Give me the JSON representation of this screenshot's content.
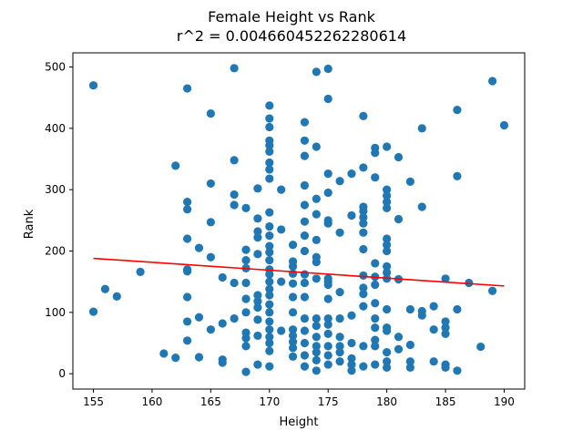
{
  "chart_data": {
    "type": "scatter",
    "title": "Female Height vs Rank",
    "subtitle": "r^2 = 0.004660452262280614",
    "xlabel": "Height",
    "ylabel": "Rank",
    "xlim": [
      153.25,
      191.75
    ],
    "ylim": [
      -25,
      523
    ],
    "xticks": [
      155,
      160,
      165,
      170,
      175,
      180,
      185,
      190
    ],
    "yticks": [
      0,
      100,
      200,
      300,
      400,
      500
    ],
    "grid": false,
    "legend": "none",
    "colors": {
      "points": "#1f77b4",
      "fit_line": "#ff0000"
    },
    "fit_line": {
      "x": [
        155,
        190
      ],
      "y": [
        188,
        143
      ]
    },
    "points": [
      [
        155,
        470
      ],
      [
        155,
        101
      ],
      [
        156,
        138
      ],
      [
        157,
        126
      ],
      [
        159,
        166
      ],
      [
        161,
        33
      ],
      [
        162,
        339
      ],
      [
        162,
        26
      ],
      [
        163,
        465
      ],
      [
        163,
        280
      ],
      [
        163,
        268
      ],
      [
        163,
        220
      ],
      [
        163,
        170
      ],
      [
        163,
        167
      ],
      [
        163,
        125
      ],
      [
        163,
        85
      ],
      [
        163,
        54
      ],
      [
        164,
        205
      ],
      [
        164,
        92
      ],
      [
        164,
        27
      ],
      [
        165,
        424
      ],
      [
        165,
        310
      ],
      [
        165,
        247
      ],
      [
        165,
        190
      ],
      [
        165,
        72
      ],
      [
        166,
        157
      ],
      [
        166,
        82
      ],
      [
        166,
        23
      ],
      [
        166,
        18
      ],
      [
        167,
        498
      ],
      [
        167,
        348
      ],
      [
        167,
        292
      ],
      [
        167,
        275
      ],
      [
        167,
        148
      ],
      [
        167,
        90
      ],
      [
        168,
        270
      ],
      [
        168,
        202
      ],
      [
        168,
        185
      ],
      [
        168,
        172
      ],
      [
        168,
        148
      ],
      [
        168,
        122
      ],
      [
        168,
        100
      ],
      [
        168,
        67
      ],
      [
        168,
        58
      ],
      [
        168,
        45
      ],
      [
        168,
        3
      ],
      [
        169,
        302
      ],
      [
        169,
        253
      ],
      [
        169,
        232
      ],
      [
        169,
        222
      ],
      [
        169,
        195
      ],
      [
        169,
        128
      ],
      [
        169,
        118
      ],
      [
        169,
        108
      ],
      [
        169,
        88
      ],
      [
        169,
        62
      ],
      [
        169,
        15
      ],
      [
        170,
        437
      ],
      [
        170,
        416
      ],
      [
        170,
        402
      ],
      [
        170,
        380
      ],
      [
        170,
        372
      ],
      [
        170,
        362
      ],
      [
        170,
        344
      ],
      [
        170,
        333
      ],
      [
        170,
        318
      ],
      [
        170,
        263
      ],
      [
        170,
        240
      ],
      [
        170,
        225
      ],
      [
        170,
        208
      ],
      [
        170,
        198
      ],
      [
        170,
        185
      ],
      [
        170,
        170
      ],
      [
        170,
        162
      ],
      [
        170,
        150
      ],
      [
        170,
        138
      ],
      [
        170,
        128
      ],
      [
        170,
        113
      ],
      [
        170,
        100
      ],
      [
        170,
        85
      ],
      [
        170,
        72
      ],
      [
        170,
        60
      ],
      [
        170,
        50
      ],
      [
        170,
        37
      ],
      [
        170,
        12
      ],
      [
        171,
        300
      ],
      [
        171,
        235
      ],
      [
        171,
        150
      ],
      [
        171,
        70
      ],
      [
        172,
        210
      ],
      [
        172,
        183
      ],
      [
        172,
        175
      ],
      [
        172,
        163
      ],
      [
        172,
        147
      ],
      [
        172,
        125
      ],
      [
        172,
        100
      ],
      [
        172,
        72
      ],
      [
        172,
        62
      ],
      [
        172,
        52
      ],
      [
        172,
        42
      ],
      [
        172,
        28
      ],
      [
        173,
        410
      ],
      [
        173,
        380
      ],
      [
        173,
        355
      ],
      [
        173,
        307
      ],
      [
        173,
        275
      ],
      [
        173,
        248
      ],
      [
        173,
        225
      ],
      [
        173,
        200
      ],
      [
        173,
        162
      ],
      [
        173,
        148
      ],
      [
        173,
        125
      ],
      [
        173,
        90
      ],
      [
        173,
        70
      ],
      [
        173,
        50
      ],
      [
        173,
        30
      ],
      [
        173,
        12
      ],
      [
        174,
        492
      ],
      [
        174,
        370
      ],
      [
        174,
        285
      ],
      [
        174,
        260
      ],
      [
        174,
        218
      ],
      [
        174,
        190
      ],
      [
        174,
        182
      ],
      [
        174,
        155
      ],
      [
        174,
        90
      ],
      [
        174,
        78
      ],
      [
        174,
        60
      ],
      [
        174,
        45
      ],
      [
        174,
        35
      ],
      [
        174,
        22
      ],
      [
        174,
        5
      ],
      [
        175,
        497
      ],
      [
        175,
        448
      ],
      [
        175,
        326
      ],
      [
        175,
        295
      ],
      [
        175,
        250
      ],
      [
        175,
        245
      ],
      [
        175,
        155
      ],
      [
        175,
        150
      ],
      [
        175,
        145
      ],
      [
        175,
        122
      ],
      [
        175,
        90
      ],
      [
        175,
        80
      ],
      [
        175,
        65
      ],
      [
        175,
        45
      ],
      [
        175,
        30
      ],
      [
        175,
        15
      ],
      [
        176,
        314
      ],
      [
        176,
        230
      ],
      [
        176,
        133
      ],
      [
        176,
        90
      ],
      [
        176,
        60
      ],
      [
        176,
        45
      ],
      [
        176,
        35
      ],
      [
        176,
        20
      ],
      [
        177,
        326
      ],
      [
        177,
        258
      ],
      [
        177,
        95
      ],
      [
        177,
        50
      ],
      [
        177,
        25
      ],
      [
        177,
        15
      ],
      [
        177,
        5
      ],
      [
        178,
        420
      ],
      [
        178,
        336
      ],
      [
        178,
        272
      ],
      [
        178,
        265
      ],
      [
        178,
        255
      ],
      [
        178,
        245
      ],
      [
        178,
        230
      ],
      [
        178,
        203
      ],
      [
        178,
        160
      ],
      [
        178,
        140
      ],
      [
        178,
        130
      ],
      [
        178,
        110
      ],
      [
        178,
        45
      ],
      [
        178,
        12
      ],
      [
        179,
        368
      ],
      [
        179,
        360
      ],
      [
        179,
        320
      ],
      [
        179,
        180
      ],
      [
        179,
        158
      ],
      [
        179,
        145
      ],
      [
        179,
        115
      ],
      [
        179,
        90
      ],
      [
        179,
        75
      ],
      [
        179,
        55
      ],
      [
        179,
        45
      ],
      [
        179,
        15
      ],
      [
        180,
        370
      ],
      [
        180,
        300
      ],
      [
        180,
        290
      ],
      [
        180,
        280
      ],
      [
        180,
        270
      ],
      [
        180,
        220
      ],
      [
        180,
        210
      ],
      [
        180,
        200
      ],
      [
        180,
        175
      ],
      [
        180,
        165
      ],
      [
        180,
        155
      ],
      [
        180,
        105
      ],
      [
        180,
        75
      ],
      [
        180,
        70
      ],
      [
        180,
        35
      ],
      [
        180,
        20
      ],
      [
        180,
        10
      ],
      [
        181,
        353
      ],
      [
        181,
        252
      ],
      [
        181,
        154
      ],
      [
        181,
        60
      ],
      [
        181,
        40
      ],
      [
        182,
        313
      ],
      [
        182,
        105
      ],
      [
        182,
        47
      ],
      [
        182,
        20
      ],
      [
        182,
        10
      ],
      [
        183,
        400
      ],
      [
        183,
        272
      ],
      [
        183,
        102
      ],
      [
        183,
        95
      ],
      [
        184,
        110
      ],
      [
        184,
        72
      ],
      [
        184,
        20
      ],
      [
        185,
        155
      ],
      [
        185,
        85
      ],
      [
        185,
        75
      ],
      [
        185,
        65
      ],
      [
        185,
        15
      ],
      [
        185,
        10
      ],
      [
        186,
        430
      ],
      [
        186,
        322
      ],
      [
        186,
        105
      ],
      [
        186,
        5
      ],
      [
        187,
        148
      ],
      [
        188,
        44
      ],
      [
        189,
        477
      ],
      [
        189,
        135
      ],
      [
        190,
        405
      ]
    ]
  }
}
